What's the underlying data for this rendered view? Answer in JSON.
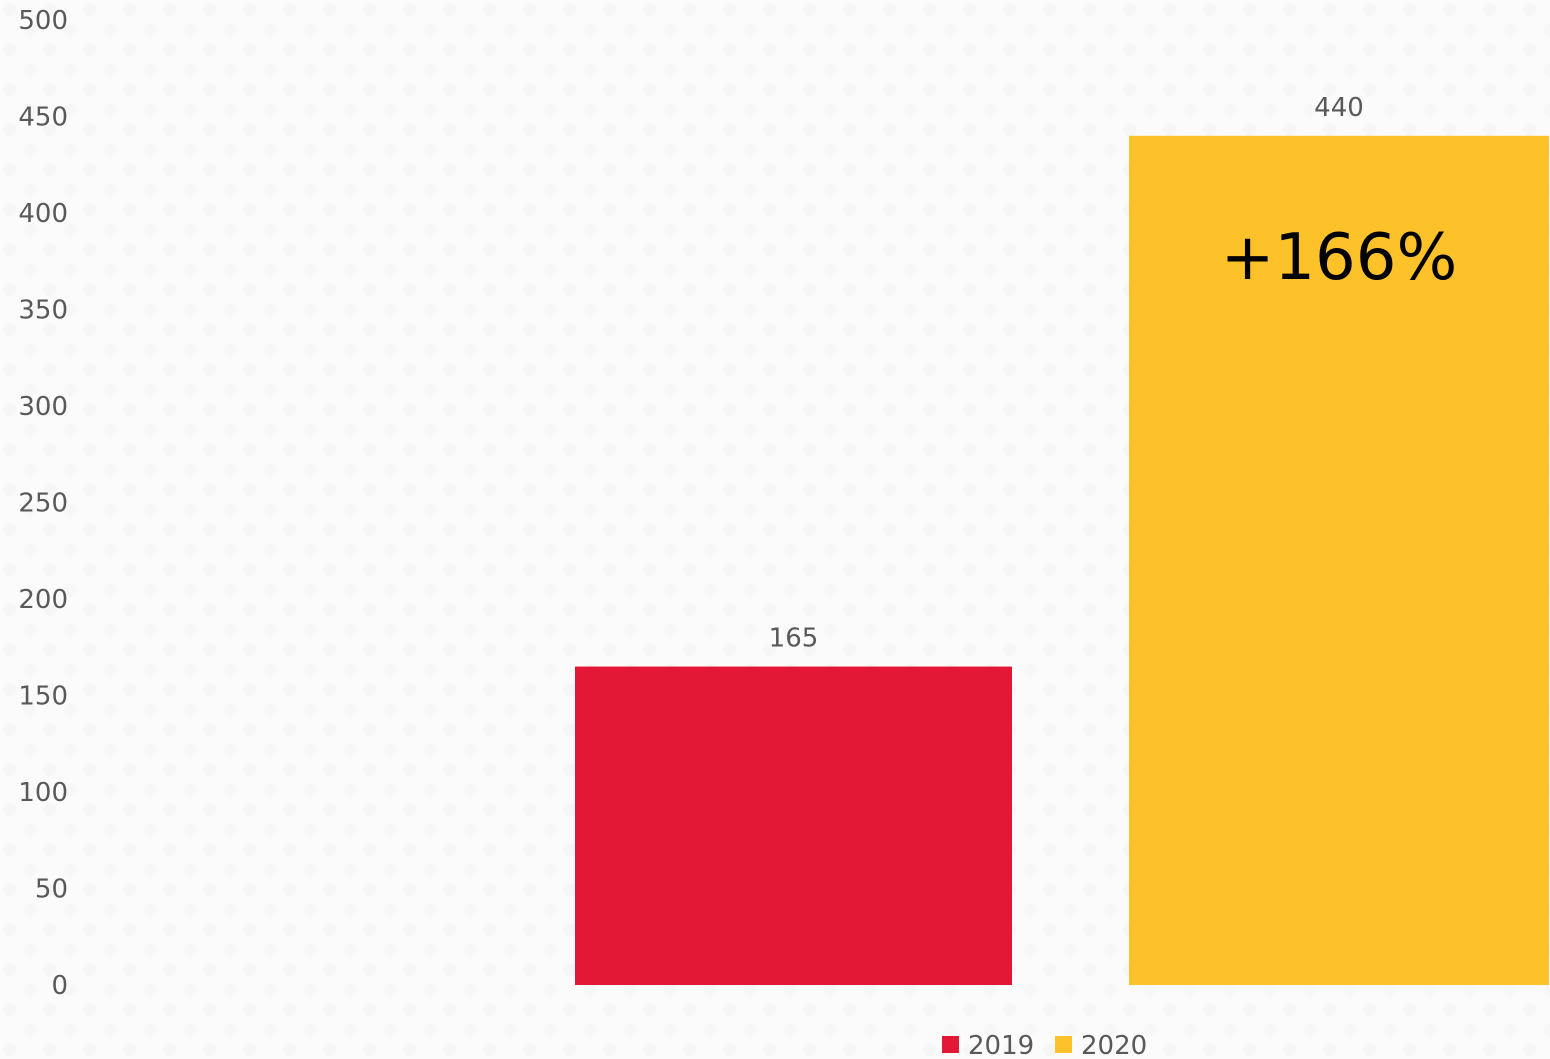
{
  "chart_data": {
    "type": "bar",
    "title": "",
    "xlabel": "",
    "ylabel": "",
    "ylim": [
      0,
      500
    ],
    "yticks": [
      "0",
      "50",
      "100",
      "150",
      "200",
      "250",
      "300",
      "350",
      "400",
      "450",
      "500"
    ],
    "grid": false,
    "legend_position": "bottom-right",
    "series": [
      {
        "name": "2019",
        "values": [
          165
        ],
        "color": "#E31837"
      },
      {
        "name": "2020",
        "values": [
          440
        ],
        "color": "#FDC229"
      }
    ],
    "data_labels": [
      "165",
      "440"
    ],
    "annotations": [
      {
        "text": "+166%",
        "series": "2020"
      }
    ]
  }
}
